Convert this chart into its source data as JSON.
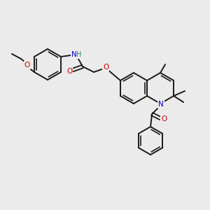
{
  "background_color": "#ebebeb",
  "bond_color": "#1a1a1a",
  "atom_colors": {
    "O": "#cc0000",
    "N": "#0000cc",
    "H": "#2d8080",
    "C": "#1a1a1a"
  }
}
